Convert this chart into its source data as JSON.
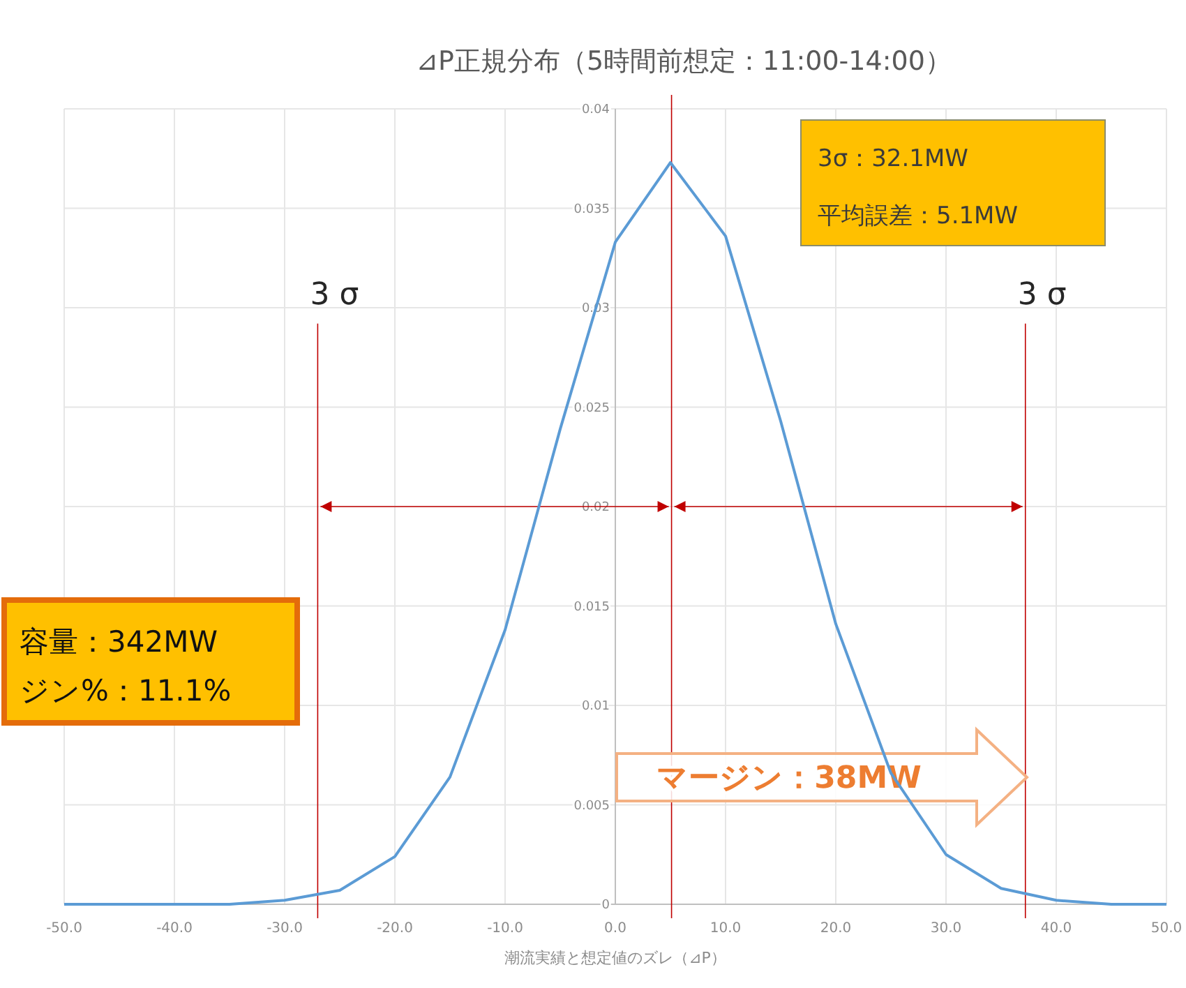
{
  "chart_data": {
    "type": "line",
    "title": "⊿P正規分布（5時間前想定：11:00-14:00）",
    "xlabel": "潮流実績と想定値のズレ（⊿P）",
    "x": [
      -50,
      -45,
      -40,
      -35,
      -30,
      -25,
      -20,
      -15,
      -10,
      -5,
      0,
      5,
      10,
      15,
      20,
      25,
      30,
      35,
      40,
      45,
      50
    ],
    "series": [
      {
        "color": "#5b9bd5",
        "values": [
          0,
          0,
          0,
          0,
          0.0002,
          0.0007,
          0.0024,
          0.0064,
          0.0138,
          0.0239,
          0.0333,
          0.0373,
          0.0336,
          0.0243,
          0.0141,
          0.0066,
          0.0025,
          0.0008,
          0.0002,
          0,
          0
        ]
      }
    ],
    "xlim": [
      -50,
      50
    ],
    "ylim": [
      0,
      0.04
    ],
    "xticks": [
      {
        "value": -50,
        "label": "-50.0"
      },
      {
        "value": -40,
        "label": "-40.0"
      },
      {
        "value": -30,
        "label": "-30.0"
      },
      {
        "value": -20,
        "label": "-20.0"
      },
      {
        "value": -10,
        "label": "-10.0"
      },
      {
        "value": 0,
        "label": "0.0"
      },
      {
        "value": 10,
        "label": "10.0"
      },
      {
        "value": 20,
        "label": "20.0"
      },
      {
        "value": 30,
        "label": "30.0"
      },
      {
        "value": 40,
        "label": "40.0"
      },
      {
        "value": 50,
        "label": "50.0"
      }
    ],
    "yticks": [
      0,
      0.005,
      0.01,
      0.015,
      0.02,
      0.025,
      0.03,
      0.035,
      0.04
    ],
    "grid": true,
    "marker": "none",
    "line_style": "solid",
    "ref_lines": [
      {
        "axis": "x",
        "value": -27.0,
        "label": "3 σ",
        "color": "#c00000"
      },
      {
        "axis": "x",
        "value": 5.1,
        "color": "#c00000"
      },
      {
        "axis": "x",
        "value": 37.2,
        "label": "3 σ",
        "color": "#c00000"
      }
    ],
    "annotations": [
      "3σ：32.1MW",
      "平均誤差：5.1MW",
      "容量：342MW",
      "ジン%：11.1%",
      {
        "text": "マージン：38MW",
        "x": 25,
        "y": 0.0066
      }
    ]
  }
}
